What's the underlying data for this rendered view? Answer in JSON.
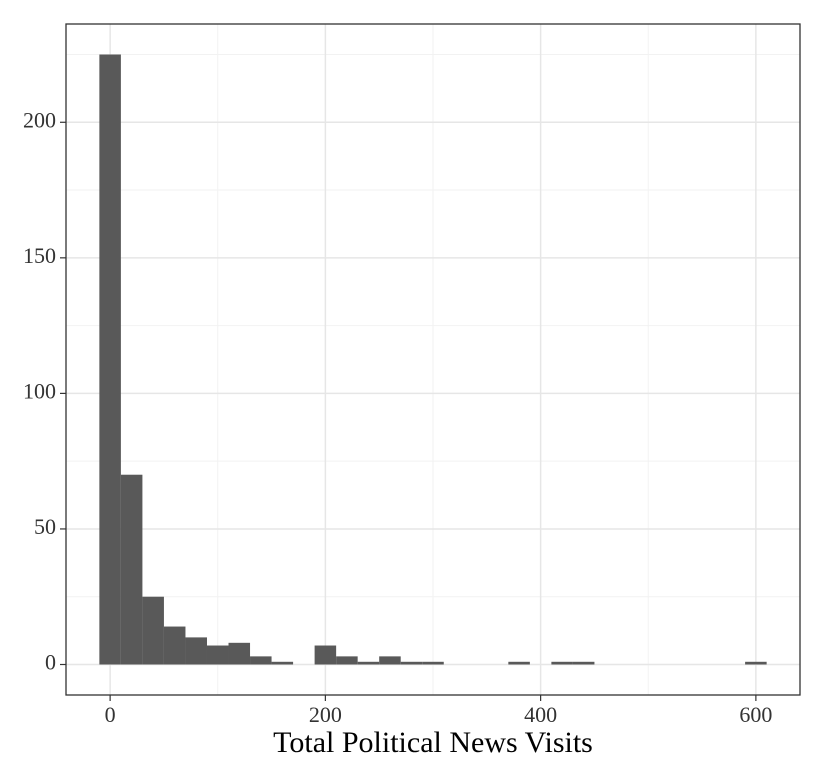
{
  "chart_data": {
    "type": "histogram",
    "x_label": "Total Political News Visits",
    "bins": [
      -10,
      10,
      30,
      50,
      70,
      90,
      110,
      130,
      150,
      170,
      190,
      210,
      230,
      250,
      270,
      290,
      310,
      330,
      350,
      370,
      390,
      410,
      430,
      450,
      470,
      490,
      510,
      530,
      550,
      570,
      590,
      610
    ],
    "values": [
      225,
      70,
      25,
      14,
      10,
      7,
      8,
      3,
      1,
      0,
      7,
      3,
      1,
      3,
      1,
      1,
      0,
      0,
      0,
      1,
      0,
      1,
      1,
      0,
      0,
      0,
      0,
      0,
      0,
      0,
      1
    ],
    "color": "#595959",
    "xlim": [
      -41,
      641
    ],
    "xticks": [
      0,
      200,
      400,
      600
    ],
    "ylim": [
      -11.25,
      236.25
    ],
    "yticks": [
      0,
      50,
      100,
      150,
      200
    ],
    "grid": true
  }
}
